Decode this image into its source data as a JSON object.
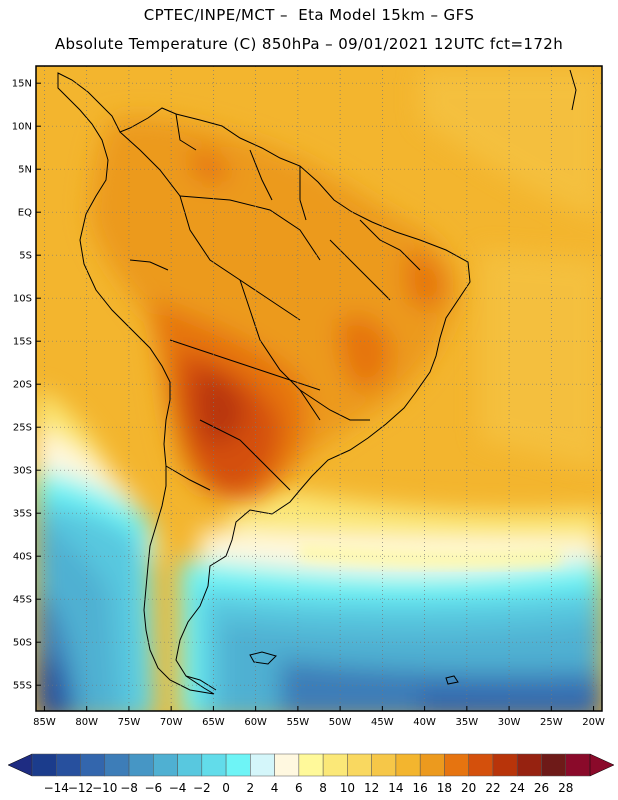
{
  "title_line1": "CPTEC/INPE/MCT –  Eta Model 15km – GFS",
  "title_line2": "Absolute Temperature (C) 850hPa – 09/01/2021 12UTC fct=172h",
  "map": {
    "region": "South America",
    "variable": "Absolute Temperature (C) at 850hPa",
    "lon_range": [
      -86,
      -19
    ],
    "lat_range": [
      -58,
      17
    ],
    "lat_ticks": [
      "15N",
      "10N",
      "5N",
      "EQ",
      "5S",
      "10S",
      "15S",
      "20S",
      "25S",
      "30S",
      "35S",
      "40S",
      "45S",
      "50S",
      "55S"
    ],
    "lat_values": [
      15,
      10,
      5,
      0,
      -5,
      -10,
      -15,
      -20,
      -25,
      -30,
      -35,
      -40,
      -45,
      -50,
      -55
    ],
    "lon_ticks": [
      "85W",
      "80W",
      "75W",
      "70W",
      "65W",
      "60W",
      "55W",
      "50W",
      "45W",
      "40W",
      "35W",
      "30W",
      "25W",
      "20W"
    ],
    "lon_values": [
      -85,
      -80,
      -75,
      -70,
      -65,
      -60,
      -55,
      -50,
      -45,
      -40,
      -35,
      -30,
      -25,
      -20
    ]
  },
  "colorbar": {
    "labels": [
      "-14",
      "-12",
      "-10",
      "-8",
      "-6",
      "-4",
      "-2",
      "0",
      "2",
      "4",
      "6",
      "8",
      "10",
      "12",
      "14",
      "16",
      "18",
      "20",
      "22",
      "24",
      "26",
      "28"
    ],
    "colors": [
      "#1b3c8c",
      "#27509e",
      "#3366ad",
      "#3d7db8",
      "#4696c5",
      "#4fb0d2",
      "#58c8df",
      "#62dcea",
      "#6ef4f6",
      "#d4f6fa",
      "#fff8e0",
      "#fff99a",
      "#fbe878",
      "#f9d860",
      "#f6c748",
      "#f3b52e",
      "#ec9a1e",
      "#e67410",
      "#d4500c",
      "#b8340a",
      "#962210",
      "#6e1a18",
      "#8a0a2a"
    ],
    "under_color": "#1e2c82",
    "over_color": "#8a0a2a"
  }
}
